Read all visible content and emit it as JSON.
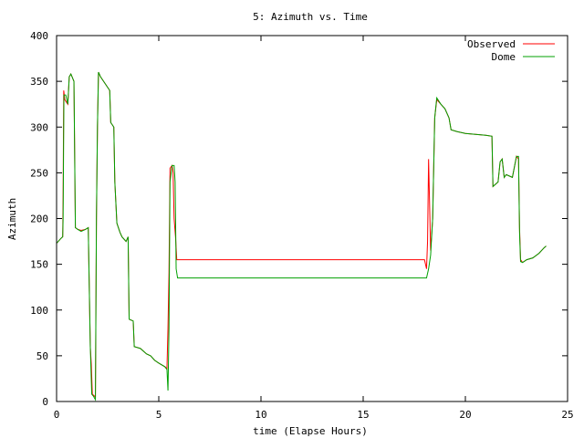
{
  "chart_data": {
    "type": "line",
    "title": "5: Azimuth vs. Time",
    "xlabel": "time (Elapse Hours)",
    "ylabel": "Azimuth",
    "xlim": [
      0,
      25
    ],
    "ylim": [
      0,
      400
    ],
    "xticks": [
      0,
      5,
      10,
      15,
      20,
      25
    ],
    "yticks": [
      0,
      50,
      100,
      150,
      200,
      250,
      300,
      350,
      400
    ],
    "grid": false,
    "legend_position": "top-right",
    "series": [
      {
        "name": "Observed",
        "color": "#ff0000",
        "points": [
          [
            0.0,
            173
          ],
          [
            0.2,
            178
          ],
          [
            0.3,
            180
          ],
          [
            0.32,
            225
          ],
          [
            0.35,
            340
          ],
          [
            0.4,
            330
          ],
          [
            0.55,
            325
          ],
          [
            0.62,
            355
          ],
          [
            0.7,
            358
          ],
          [
            0.85,
            350
          ],
          [
            0.92,
            190
          ],
          [
            1.05,
            188
          ],
          [
            1.2,
            187
          ],
          [
            1.4,
            188
          ],
          [
            1.55,
            190
          ],
          [
            1.65,
            60
          ],
          [
            1.7,
            40
          ],
          [
            1.75,
            8
          ],
          [
            1.9,
            5
          ],
          [
            1.95,
            200
          ],
          [
            2.0,
            300
          ],
          [
            2.05,
            360
          ],
          [
            2.15,
            355
          ],
          [
            2.3,
            350
          ],
          [
            2.45,
            345
          ],
          [
            2.6,
            340
          ],
          [
            2.65,
            305
          ],
          [
            2.8,
            300
          ],
          [
            2.85,
            240
          ],
          [
            2.95,
            195
          ],
          [
            3.1,
            185
          ],
          [
            3.2,
            180
          ],
          [
            3.4,
            175
          ],
          [
            3.5,
            180
          ],
          [
            3.55,
            90
          ],
          [
            3.75,
            88
          ],
          [
            3.8,
            60
          ],
          [
            4.1,
            58
          ],
          [
            4.4,
            52
          ],
          [
            4.6,
            50
          ],
          [
            4.8,
            45
          ],
          [
            5.0,
            42
          ],
          [
            5.3,
            38
          ],
          [
            5.4,
            36
          ],
          [
            5.45,
            80
          ],
          [
            5.5,
            140
          ],
          [
            5.55,
            255
          ],
          [
            5.65,
            258
          ],
          [
            5.7,
            250
          ],
          [
            5.75,
            200
          ],
          [
            5.82,
            180
          ],
          [
            5.88,
            155
          ],
          [
            6.5,
            155
          ],
          [
            8.0,
            155
          ],
          [
            10.0,
            155
          ],
          [
            12.0,
            155
          ],
          [
            14.0,
            155
          ],
          [
            16.0,
            155
          ],
          [
            18.0,
            155
          ],
          [
            18.05,
            150
          ],
          [
            18.1,
            145
          ],
          [
            18.15,
            175
          ],
          [
            18.2,
            265
          ],
          [
            18.3,
            165
          ],
          [
            18.4,
            200
          ],
          [
            18.5,
            310
          ],
          [
            18.6,
            330
          ],
          [
            18.8,
            325
          ],
          [
            19.0,
            320
          ],
          [
            19.2,
            310
          ],
          [
            19.3,
            297
          ],
          [
            19.6,
            295
          ],
          [
            20.0,
            293
          ],
          [
            20.5,
            292
          ],
          [
            21.0,
            291
          ],
          [
            21.3,
            290
          ],
          [
            21.35,
            235
          ],
          [
            21.6,
            240
          ],
          [
            21.7,
            262
          ],
          [
            21.8,
            265
          ],
          [
            21.9,
            245
          ],
          [
            22.0,
            248
          ],
          [
            22.3,
            245
          ],
          [
            22.5,
            268
          ],
          [
            22.6,
            265
          ],
          [
            22.65,
            190
          ],
          [
            22.7,
            155
          ],
          [
            22.8,
            152
          ],
          [
            23.0,
            155
          ],
          [
            23.3,
            157
          ],
          [
            23.6,
            162
          ],
          [
            23.85,
            168
          ],
          [
            23.95,
            170
          ]
        ]
      },
      {
        "name": "Dome",
        "color": "#00a000",
        "points": [
          [
            0.0,
            173
          ],
          [
            0.2,
            178
          ],
          [
            0.3,
            180
          ],
          [
            0.32,
            200
          ],
          [
            0.36,
            335
          ],
          [
            0.45,
            335
          ],
          [
            0.55,
            325
          ],
          [
            0.62,
            355
          ],
          [
            0.7,
            358
          ],
          [
            0.85,
            350
          ],
          [
            0.92,
            190
          ],
          [
            1.05,
            188
          ],
          [
            1.2,
            186
          ],
          [
            1.4,
            188
          ],
          [
            1.55,
            190
          ],
          [
            1.65,
            60
          ],
          [
            1.72,
            8
          ],
          [
            1.8,
            6
          ],
          [
            1.9,
            2
          ],
          [
            1.95,
            200
          ],
          [
            2.0,
            300
          ],
          [
            2.05,
            360
          ],
          [
            2.15,
            355
          ],
          [
            2.3,
            350
          ],
          [
            2.45,
            345
          ],
          [
            2.6,
            340
          ],
          [
            2.65,
            305
          ],
          [
            2.8,
            300
          ],
          [
            2.85,
            240
          ],
          [
            2.95,
            195
          ],
          [
            3.1,
            185
          ],
          [
            3.2,
            180
          ],
          [
            3.4,
            175
          ],
          [
            3.5,
            180
          ],
          [
            3.55,
            90
          ],
          [
            3.75,
            88
          ],
          [
            3.8,
            60
          ],
          [
            4.1,
            58
          ],
          [
            4.4,
            52
          ],
          [
            4.6,
            50
          ],
          [
            4.8,
            45
          ],
          [
            5.0,
            42
          ],
          [
            5.3,
            38
          ],
          [
            5.4,
            35
          ],
          [
            5.45,
            12
          ],
          [
            5.5,
            80
          ],
          [
            5.55,
            240
          ],
          [
            5.65,
            258
          ],
          [
            5.75,
            258
          ],
          [
            5.8,
            240
          ],
          [
            5.85,
            145
          ],
          [
            5.92,
            135
          ],
          [
            6.5,
            135
          ],
          [
            8.0,
            135
          ],
          [
            10.0,
            135
          ],
          [
            12.0,
            135
          ],
          [
            14.0,
            135
          ],
          [
            16.0,
            135
          ],
          [
            18.0,
            135
          ],
          [
            18.1,
            135
          ],
          [
            18.2,
            145
          ],
          [
            18.3,
            160
          ],
          [
            18.4,
            200
          ],
          [
            18.5,
            310
          ],
          [
            18.6,
            332
          ],
          [
            18.8,
            325
          ],
          [
            19.0,
            320
          ],
          [
            19.2,
            310
          ],
          [
            19.3,
            297
          ],
          [
            19.6,
            295
          ],
          [
            20.0,
            293
          ],
          [
            20.5,
            292
          ],
          [
            21.0,
            291
          ],
          [
            21.3,
            290
          ],
          [
            21.35,
            235
          ],
          [
            21.6,
            240
          ],
          [
            21.7,
            262
          ],
          [
            21.8,
            265
          ],
          [
            21.9,
            245
          ],
          [
            22.0,
            248
          ],
          [
            22.3,
            245
          ],
          [
            22.5,
            268
          ],
          [
            22.6,
            268
          ],
          [
            22.65,
            185
          ],
          [
            22.7,
            153
          ],
          [
            22.8,
            152
          ],
          [
            23.0,
            155
          ],
          [
            23.3,
            157
          ],
          [
            23.6,
            162
          ],
          [
            23.85,
            168
          ],
          [
            23.95,
            170
          ]
        ]
      }
    ]
  }
}
